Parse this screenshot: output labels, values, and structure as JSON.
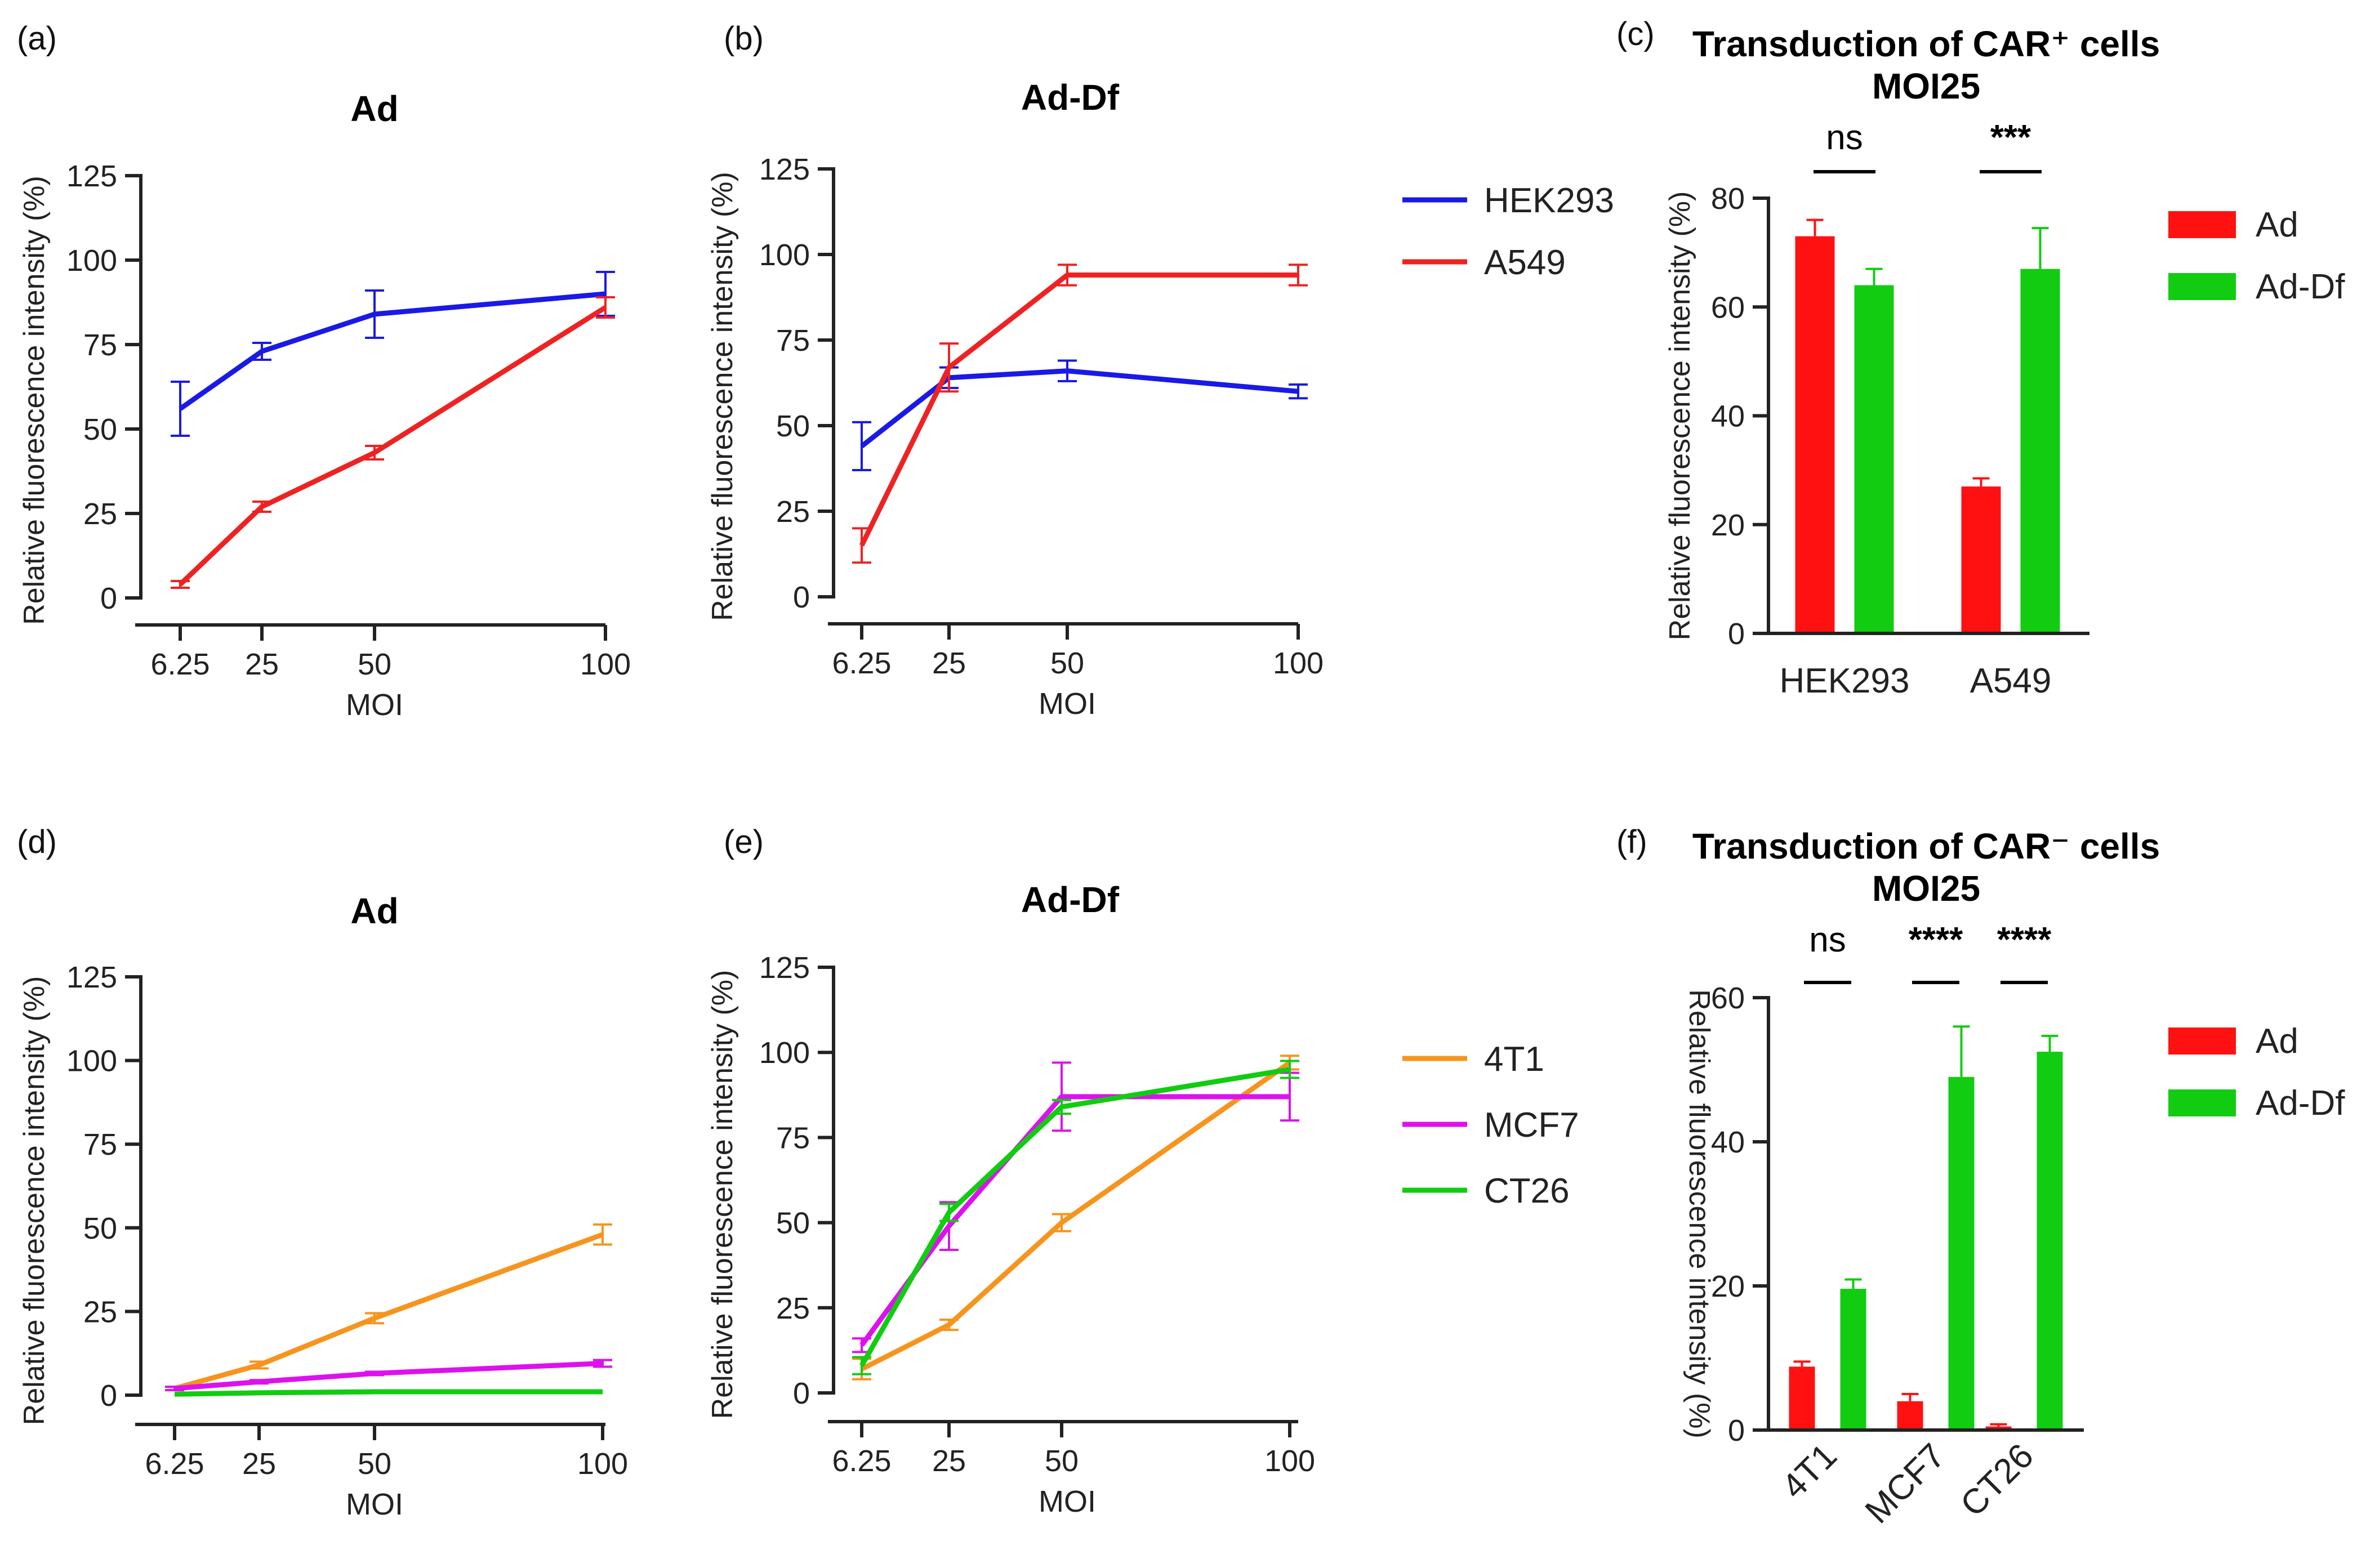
{
  "chart_data": [
    {
      "panel": "(a)",
      "type": "line",
      "title": "Ad",
      "x": [
        6.25,
        25,
        50,
        100
      ],
      "x_tick_labels": [
        "6.25",
        "25",
        "50",
        "100"
      ],
      "xlabel": "MOI",
      "ylabel": "Relative fluorescence intensity (%)",
      "ylim": [
        0,
        125
      ],
      "y_ticks": [
        0,
        25,
        50,
        75,
        100,
        125
      ],
      "series": [
        {
          "name": "HEK293",
          "color": "#1a1ae6",
          "values": [
            56,
            73,
            84,
            90
          ],
          "errors": [
            8,
            2.5,
            7,
            6.5
          ]
        },
        {
          "name": "A549",
          "color": "#ee2222",
          "values": [
            4,
            27,
            43,
            86
          ],
          "errors": [
            1,
            1.5,
            2,
            3
          ]
        }
      ]
    },
    {
      "panel": "(b)",
      "type": "line",
      "title": "Ad-Df",
      "x": [
        6.25,
        25,
        50,
        100
      ],
      "x_tick_labels": [
        "6.25",
        "25",
        "50",
        "100"
      ],
      "xlabel": "MOI",
      "ylabel": "Relative fluorescence intensity (%)",
      "ylim": [
        0,
        125
      ],
      "y_ticks": [
        0,
        25,
        50,
        75,
        100,
        125
      ],
      "legend": [
        "HEK293",
        "A549"
      ],
      "series": [
        {
          "name": "HEK293",
          "color": "#1a1ae6",
          "values": [
            44,
            64,
            66,
            60
          ],
          "errors": [
            7,
            3,
            3,
            2
          ]
        },
        {
          "name": "A549",
          "color": "#ee2222",
          "values": [
            15,
            67,
            94,
            94
          ],
          "errors": [
            5,
            7,
            3,
            3
          ]
        }
      ]
    },
    {
      "panel": "(c)",
      "type": "bar",
      "title": "Transduction of CAR⁺ cells",
      "subtitle": "MOI25",
      "categories": [
        "HEK293",
        "A549"
      ],
      "ylabel": "Relative fluorescence intensity (%)",
      "ylim": [
        0,
        80
      ],
      "y_ticks": [
        0,
        20,
        40,
        60,
        80
      ],
      "legend": [
        "Ad",
        "Ad-Df"
      ],
      "series": [
        {
          "name": "Ad",
          "color": "#ff1111",
          "values": [
            73,
            27
          ],
          "errors": [
            3,
            1.5
          ]
        },
        {
          "name": "Ad-Df",
          "color": "#11cc11",
          "values": [
            64,
            67
          ],
          "errors": [
            3,
            7.5
          ]
        }
      ],
      "significance": [
        "ns",
        "***"
      ]
    },
    {
      "panel": "(d)",
      "type": "line",
      "title": "Ad",
      "x": [
        6.25,
        25,
        50,
        100
      ],
      "x_tick_labels": [
        "6.25",
        "25",
        "50",
        "100"
      ],
      "xlabel": "MOI",
      "ylabel": "Relative fluorescence intensity (%)",
      "ylim": [
        0,
        125
      ],
      "y_ticks": [
        0,
        25,
        50,
        75,
        100,
        125
      ],
      "series": [
        {
          "name": "4T1",
          "color": "#f7941d",
          "values": [
            2,
            9,
            23,
            48
          ],
          "errors": [
            0.5,
            1,
            1.5,
            3
          ]
        },
        {
          "name": "MCF7",
          "color": "#dd11ee",
          "values": [
            2,
            4,
            6.5,
            9.5
          ],
          "errors": [
            0.5,
            0.5,
            0.5,
            1
          ]
        },
        {
          "name": "CT26",
          "color": "#11cc11",
          "values": [
            0.3,
            0.7,
            1,
            1
          ],
          "errors": [
            0,
            0,
            0,
            0
          ]
        }
      ]
    },
    {
      "panel": "(e)",
      "type": "line",
      "title": "Ad-Df",
      "x": [
        6.25,
        25,
        50,
        100
      ],
      "x_tick_labels": [
        "6.25",
        "25",
        "50",
        "100"
      ],
      "xlabel": "MOI",
      "ylabel": "Relative fluorescence intensity (%)",
      "ylim": [
        0,
        125
      ],
      "y_ticks": [
        0,
        25,
        50,
        75,
        100,
        125
      ],
      "legend": [
        "4T1",
        "MCF7",
        "CT26"
      ],
      "series": [
        {
          "name": "4T1",
          "color": "#f7941d",
          "values": [
            7,
            20,
            50,
            97
          ],
          "errors": [
            3,
            1.5,
            2.5,
            2
          ]
        },
        {
          "name": "MCF7",
          "color": "#dd11ee",
          "values": [
            14,
            49,
            87,
            87
          ],
          "errors": [
            2,
            7,
            10,
            7
          ]
        },
        {
          "name": "CT26",
          "color": "#11cc11",
          "values": [
            8,
            53,
            84,
            95
          ],
          "errors": [
            2.5,
            2.5,
            2,
            2.5
          ]
        }
      ]
    },
    {
      "panel": "(f)",
      "type": "bar",
      "title": "Transduction of CAR⁻ cells",
      "subtitle": "MOI25",
      "categories": [
        "4T1",
        "MCF7",
        "CT26"
      ],
      "ylabel": "Relative fluorescence intensity (%)",
      "ylim": [
        0,
        60
      ],
      "y_ticks": [
        0,
        20,
        40,
        60
      ],
      "legend": [
        "Ad",
        "Ad-Df"
      ],
      "series": [
        {
          "name": "Ad",
          "color": "#ff1111",
          "values": [
            8.8,
            4,
            0.5
          ],
          "errors": [
            0.7,
            1,
            0.3
          ]
        },
        {
          "name": "Ad-Df",
          "color": "#11cc11",
          "values": [
            19.6,
            49,
            52.5
          ],
          "errors": [
            1.3,
            7,
            2.2
          ]
        }
      ],
      "significance": [
        "ns",
        "****",
        "****"
      ]
    }
  ]
}
